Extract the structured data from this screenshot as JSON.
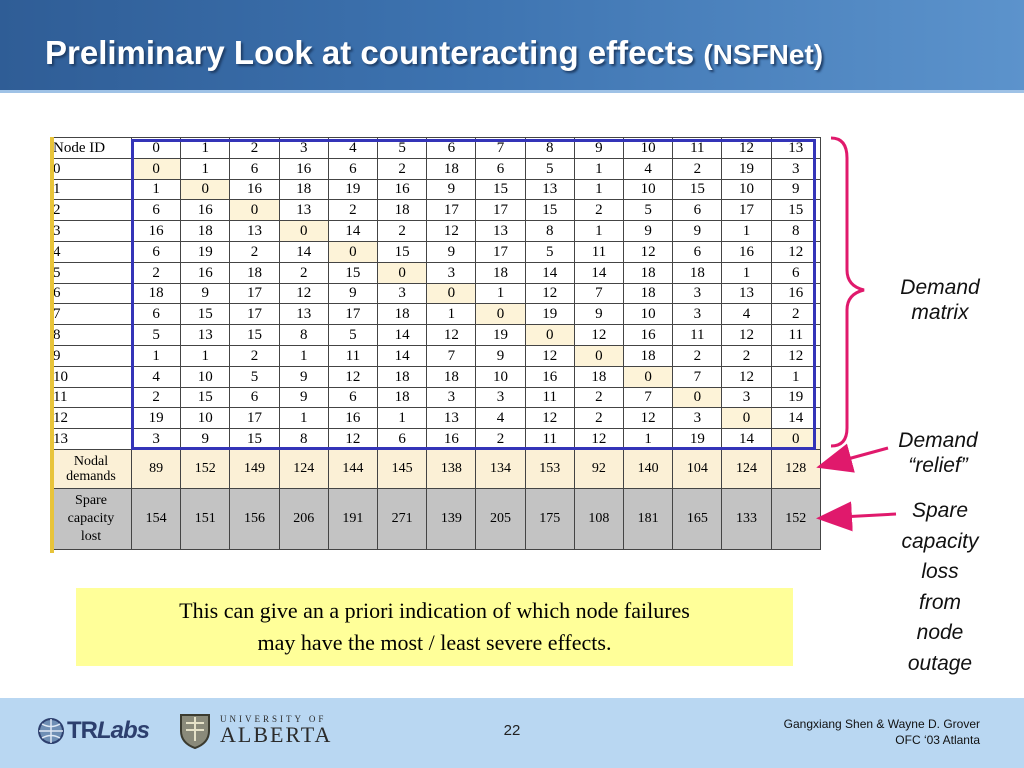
{
  "slide": {
    "title": "Preliminary Look at counteracting effects",
    "title_suffix": "(NSFNet)",
    "callout_line1": "This can give an a priori indication of which  node failures",
    "callout_line2": "may have the most / least severe effects.",
    "annotations": {
      "demand_matrix_1": "Demand",
      "demand_matrix_2": "matrix",
      "demand_relief_1": "Demand",
      "demand_relief_2": "“relief”",
      "spare_1": "Spare",
      "spare_2": "capacity",
      "spare_3": "loss",
      "spare_4": "from",
      "spare_5": "node",
      "spare_6": "outage"
    },
    "colors": {
      "callout_bg": "#ffff99",
      "box_border": "#3434b8",
      "arrow": "#e0196c",
      "footer_bg": "#b9d7f2",
      "title_bg": "#3d73b0"
    }
  },
  "table": {
    "header_label": "Node ID",
    "nodes": [
      "0",
      "1",
      "2",
      "3",
      "4",
      "5",
      "6",
      "7",
      "8",
      "9",
      "10",
      "11",
      "12",
      "13"
    ],
    "matrix": [
      [
        "0",
        "1",
        "6",
        "16",
        "6",
        "2",
        "18",
        "6",
        "5",
        "1",
        "4",
        "2",
        "19",
        "3"
      ],
      [
        "1",
        "0",
        "16",
        "18",
        "19",
        "16",
        "9",
        "15",
        "13",
        "1",
        "10",
        "15",
        "10",
        "9"
      ],
      [
        "6",
        "16",
        "0",
        "13",
        "2",
        "18",
        "17",
        "17",
        "15",
        "2",
        "5",
        "6",
        "17",
        "15"
      ],
      [
        "16",
        "18",
        "13",
        "0",
        "14",
        "2",
        "12",
        "13",
        "8",
        "1",
        "9",
        "9",
        "1",
        "8"
      ],
      [
        "6",
        "19",
        "2",
        "14",
        "0",
        "15",
        "9",
        "17",
        "5",
        "11",
        "12",
        "6",
        "16",
        "12"
      ],
      [
        "2",
        "16",
        "18",
        "2",
        "15",
        "0",
        "3",
        "18",
        "14",
        "14",
        "18",
        "18",
        "1",
        "6"
      ],
      [
        "18",
        "9",
        "17",
        "12",
        "9",
        "3",
        "0",
        "1",
        "12",
        "7",
        "18",
        "3",
        "13",
        "16"
      ],
      [
        "6",
        "15",
        "17",
        "13",
        "17",
        "18",
        "1",
        "0",
        "19",
        "9",
        "10",
        "3",
        "4",
        "2"
      ],
      [
        "5",
        "13",
        "15",
        "8",
        "5",
        "14",
        "12",
        "19",
        "0",
        "12",
        "16",
        "11",
        "12",
        "11"
      ],
      [
        "1",
        "1",
        "2",
        "1",
        "11",
        "14",
        "7",
        "9",
        "12",
        "0",
        "18",
        "2",
        "2",
        "12"
      ],
      [
        "4",
        "10",
        "5",
        "9",
        "12",
        "18",
        "18",
        "10",
        "16",
        "18",
        "0",
        "7",
        "12",
        "1"
      ],
      [
        "2",
        "15",
        "6",
        "9",
        "6",
        "18",
        "3",
        "3",
        "11",
        "2",
        "7",
        "0",
        "3",
        "19"
      ],
      [
        "19",
        "10",
        "17",
        "1",
        "16",
        "1",
        "13",
        "4",
        "12",
        "2",
        "12",
        "3",
        "0",
        "14"
      ],
      [
        "3",
        "9",
        "15",
        "8",
        "12",
        "6",
        "16",
        "2",
        "11",
        "12",
        "1",
        "19",
        "14",
        "0"
      ]
    ],
    "nodal_label_1": "Nodal",
    "nodal_label_2": "demands",
    "nodal_demands": [
      "89",
      "152",
      "149",
      "124",
      "144",
      "145",
      "138",
      "134",
      "153",
      "92",
      "140",
      "104",
      "124",
      "128"
    ],
    "spare_label_1": "Spare",
    "spare_label_2": "capacity",
    "spare_label_3": "lost",
    "spare_lost": [
      "154",
      "151",
      "156",
      "206",
      "191",
      "271",
      "139",
      "205",
      "175",
      "108",
      "181",
      "165",
      "133",
      "152"
    ]
  },
  "footer": {
    "trlabs_tr": "TR",
    "trlabs_labs": "Labs",
    "ua_top": "UNIVERSITY OF",
    "ua_bottom": "ALBERTA",
    "page_number": "22",
    "credit_line1": "Gangxiang Shen & Wayne D. Grover",
    "credit_line2": "OFC ‘03 Atlanta"
  }
}
